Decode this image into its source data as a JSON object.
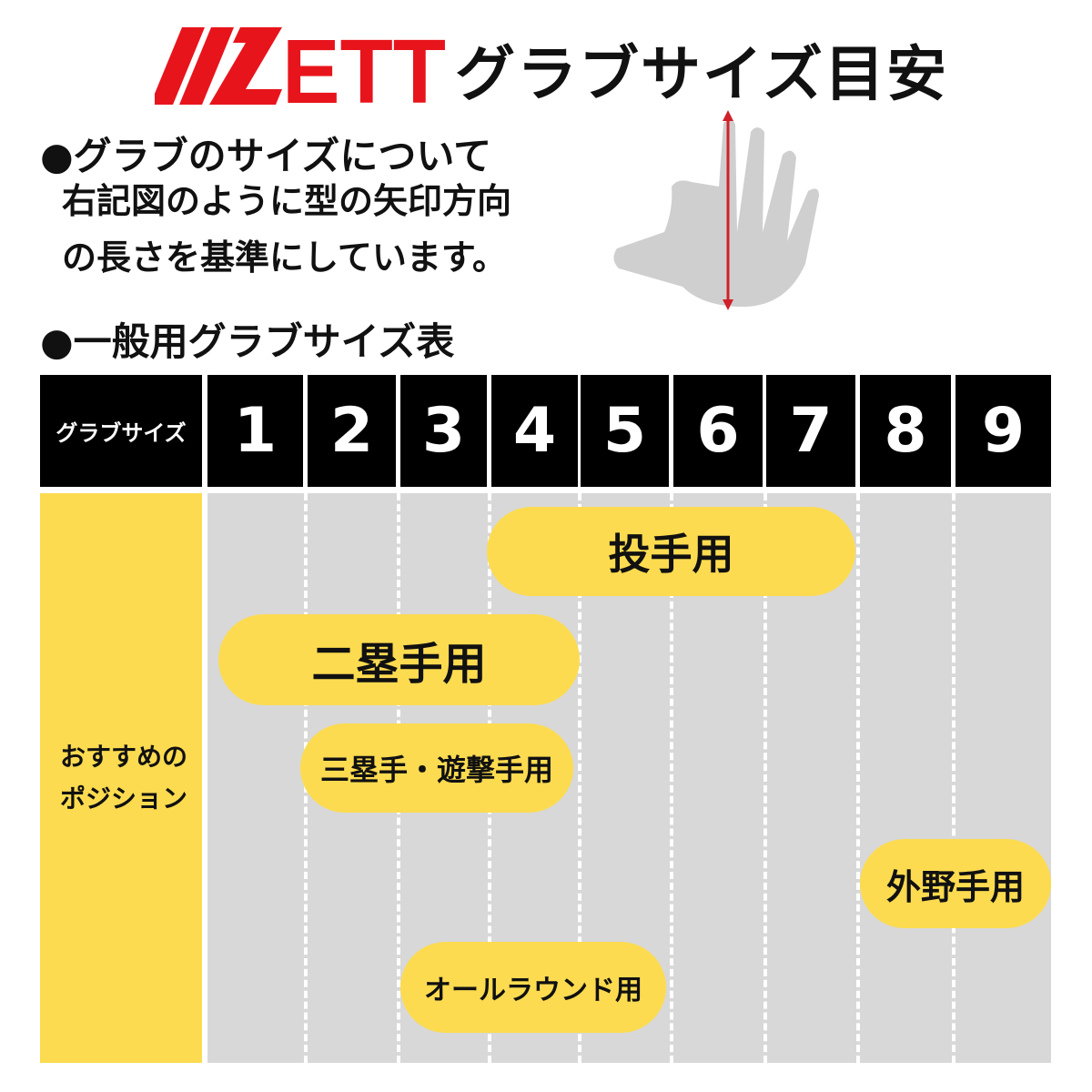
{
  "header": {
    "logo": "ZETT",
    "title": "グラブサイズ目安",
    "logo_color": "#e8141c"
  },
  "about": {
    "heading": "●グラブのサイズについて",
    "lines": [
      "右記図のように型の矢印方向",
      "の長さを基準にしています。"
    ]
  },
  "table_heading": "●一般用グラブサイズ表",
  "table": {
    "size_header": "グラブサイズ",
    "sizes": [
      "1",
      "2",
      "3",
      "4",
      "5",
      "6",
      "7",
      "8",
      "9"
    ],
    "position_header_lines": [
      "おすすめの",
      "ポジション"
    ],
    "positions": [
      {
        "label": "投手用",
        "sizes": [
          4,
          7
        ]
      },
      {
        "label": "二塁手用",
        "sizes": [
          1,
          4
        ]
      },
      {
        "label": "三塁手・遊撃手用",
        "sizes": [
          2,
          4
        ]
      },
      {
        "label": "外野手用",
        "sizes": [
          8,
          9
        ]
      },
      {
        "label": "オールラウンド用",
        "sizes": [
          3,
          5
        ]
      }
    ]
  },
  "colors": {
    "yellow": "#fcdb50",
    "gray": "#d8d8d8",
    "black": "#000000",
    "arrow": "#d0202a"
  }
}
